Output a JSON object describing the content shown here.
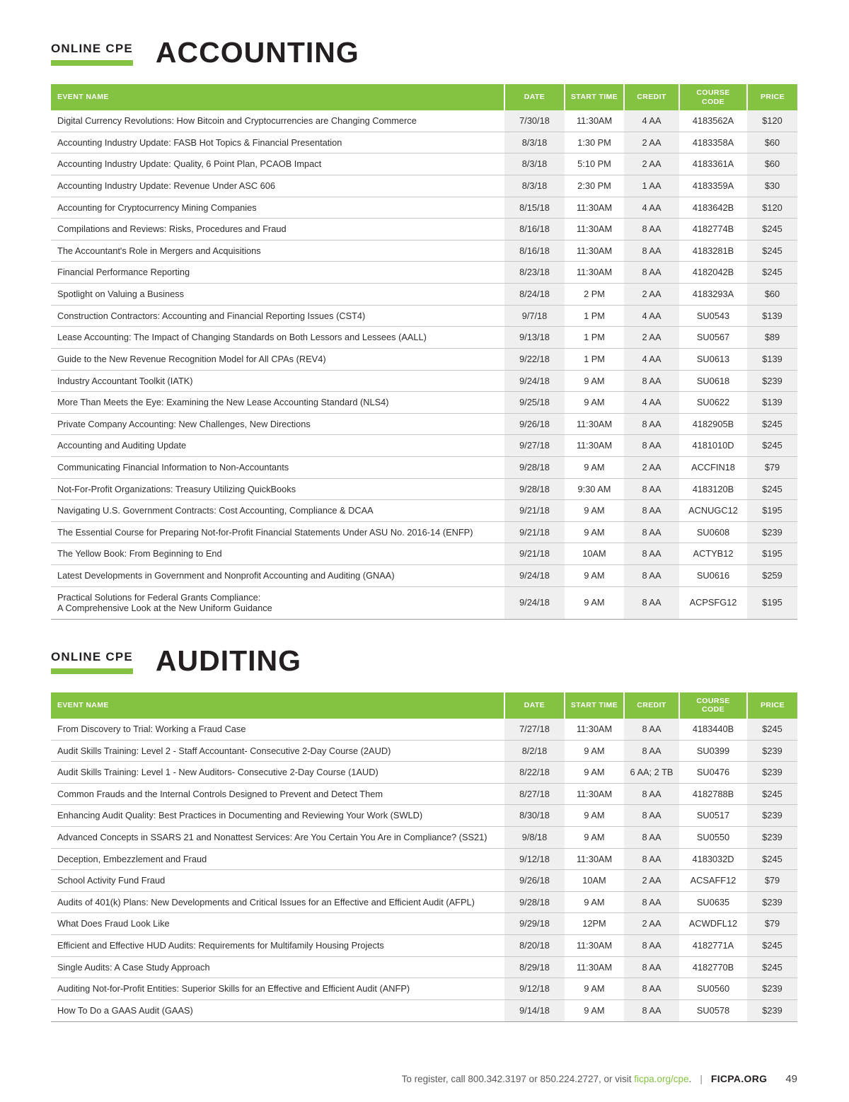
{
  "colors": {
    "green": "#84c341"
  },
  "sections": [
    {
      "label": "ONLINE CPE",
      "title": "ACCOUNTING",
      "columns": [
        "EVENT NAME",
        "DATE",
        "START TIME",
        "CREDIT",
        "COURSE CODE",
        "PRICE"
      ],
      "rows": [
        [
          "Digital Currency Revolutions: How Bitcoin and Cryptocurrencies are Changing Commerce",
          "7/30/18",
          "11:30AM",
          "4 AA",
          "4183562A",
          "$120"
        ],
        [
          "Accounting Industry Update: FASB Hot Topics & Financial Presentation",
          "8/3/18",
          "1:30 PM",
          "2 AA",
          "4183358A",
          "$60"
        ],
        [
          "Accounting Industry Update: Quality, 6 Point Plan, PCAOB Impact",
          "8/3/18",
          "5:10 PM",
          "2 AA",
          "4183361A",
          "$60"
        ],
        [
          "Accounting Industry Update: Revenue Under ASC 606",
          "8/3/18",
          "2:30 PM",
          "1 AA",
          "4183359A",
          "$30"
        ],
        [
          "Accounting for Cryptocurrency Mining Companies",
          "8/15/18",
          "11:30AM",
          "4 AA",
          "4183642B",
          "$120"
        ],
        [
          "Compilations and Reviews: Risks, Procedures and Fraud",
          "8/16/18",
          "11:30AM",
          "8 AA",
          "4182774B",
          "$245"
        ],
        [
          "The Accountant's Role in Mergers and Acquisitions",
          "8/16/18",
          "11:30AM",
          "8 AA",
          "4183281B",
          "$245"
        ],
        [
          "Financial Performance Reporting",
          "8/23/18",
          "11:30AM",
          "8 AA",
          "4182042B",
          "$245"
        ],
        [
          "Spotlight on Valuing a Business",
          "8/24/18",
          "2 PM",
          "2 AA",
          "4183293A",
          "$60"
        ],
        [
          "Construction Contractors: Accounting and Financial Reporting Issues (CST4)",
          "9/7/18",
          "1 PM",
          "4 AA",
          "SU0543",
          "$139"
        ],
        [
          "Lease Accounting: The Impact of Changing Standards on Both Lessors and Lessees (AALL)",
          "9/13/18",
          "1 PM",
          "2 AA",
          "SU0567",
          "$89"
        ],
        [
          "Guide to the New Revenue Recognition Model for All CPAs (REV4)",
          "9/22/18",
          "1 PM",
          "4 AA",
          "SU0613",
          "$139"
        ],
        [
          "Industry Accountant Toolkit (IATK)",
          "9/24/18",
          "9 AM",
          "8 AA",
          "SU0618",
          "$239"
        ],
        [
          "More Than Meets the Eye: Examining the New Lease Accounting Standard (NLS4)",
          "9/25/18",
          "9 AM",
          "4 AA",
          "SU0622",
          "$139"
        ],
        [
          "Private Company Accounting: New Challenges, New Directions",
          "9/26/18",
          "11:30AM",
          "8 AA",
          "4182905B",
          "$245"
        ],
        [
          "Accounting and Auditing Update",
          "9/27/18",
          "11:30AM",
          "8 AA",
          "4181010D",
          "$245"
        ],
        [
          "Communicating Financial Information to Non-Accountants",
          "9/28/18",
          "9 AM",
          "2 AA",
          "ACCFIN18",
          "$79"
        ],
        [
          "Not-For-Profit Organizations: Treasury Utilizing QuickBooks",
          "9/28/18",
          "9:30 AM",
          "8 AA",
          "4183120B",
          "$245"
        ],
        [
          "Navigating U.S. Government Contracts: Cost Accounting, Compliance & DCAA",
          "9/21/18",
          "9 AM",
          "8 AA",
          "ACNUGC12",
          "$195"
        ],
        [
          "The Essential Course for Preparing Not-for-Profit Financial Statements Under ASU No. 2016-14  (ENFP)",
          "9/21/18",
          "9 AM",
          "8 AA",
          "SU0608",
          "$239"
        ],
        [
          "The Yellow Book: From Beginning to End",
          "9/21/18",
          "10AM",
          "8 AA",
          "ACTYB12",
          "$195"
        ],
        [
          "Latest Developments in Government and Nonprofit Accounting and Auditing (GNAA)",
          "9/24/18",
          "9 AM",
          "8 AA",
          "SU0616",
          "$259"
        ],
        [
          "Practical Solutions for Federal Grants Compliance:\nA Comprehensive Look at the New Uniform Guidance",
          "9/24/18",
          "9 AM",
          "8 AA",
          "ACPSFG12",
          "$195"
        ]
      ]
    },
    {
      "label": "ONLINE CPE",
      "title": "AUDITING",
      "columns": [
        "EVENT NAME",
        "DATE",
        "START TIME",
        "CREDIT",
        "COURSE CODE",
        "PRICE"
      ],
      "rows": [
        [
          "From Discovery to Trial: Working a Fraud Case",
          "7/27/18",
          "11:30AM",
          "8 AA",
          "4183440B",
          "$245"
        ],
        [
          "Audit Skills Training: Level 2 - Staff Accountant- Consecutive 2-Day Course (2AUD)",
          "8/2/18",
          "9 AM",
          "8 AA",
          "SU0399",
          "$239"
        ],
        [
          "Audit Skills Training: Level 1 - New Auditors- Consecutive 2-Day Course (1AUD)",
          "8/22/18",
          "9 AM",
          "6 AA; 2 TB",
          "SU0476",
          "$239"
        ],
        [
          "Common Frauds and the Internal Controls Designed to Prevent and Detect Them",
          "8/27/18",
          "11:30AM",
          "8 AA",
          "4182788B",
          "$245"
        ],
        [
          "Enhancing Audit Quality: Best Practices in Documenting and Reviewing Your Work (SWLD)",
          "8/30/18",
          "9 AM",
          "8 AA",
          "SU0517",
          "$239"
        ],
        [
          "Advanced Concepts in SSARS 21 and Nonattest Services: Are You Certain You Are in Compliance? (SS21)",
          "9/8/18",
          "9 AM",
          "8 AA",
          "SU0550",
          "$239"
        ],
        [
          "Deception, Embezzlement and Fraud",
          "9/12/18",
          "11:30AM",
          "8 AA",
          "4183032D",
          "$245"
        ],
        [
          "School Activity Fund Fraud",
          "9/26/18",
          "10AM",
          "2 AA",
          "ACSAFF12",
          "$79"
        ],
        [
          "Audits of 401(k) Plans: New Developments and Critical Issues for an Effective and Efficient Audit (AFPL)",
          "9/28/18",
          "9 AM",
          "8 AA",
          "SU0635",
          "$239"
        ],
        [
          "What Does Fraud Look Like",
          "9/29/18",
          "12PM",
          "2 AA",
          "ACWDFL12",
          "$79"
        ],
        [
          "Efficient and Effective HUD Audits: Requirements for Multifamily Housing Projects",
          "8/20/18",
          "11:30AM",
          "8 AA",
          "4182771A",
          "$245"
        ],
        [
          "Single Audits: A Case Study Approach",
          "8/29/18",
          "11:30AM",
          "8 AA",
          "4182770B",
          "$245"
        ],
        [
          "Auditing Not-for-Profit Entities: Superior Skills for an Effective and Efficient Audit (ANFP)",
          "9/12/18",
          "9 AM",
          "8 AA",
          "SU0560",
          "$239"
        ],
        [
          "How To Do a GAAS Audit (GAAS)",
          "9/14/18",
          "9 AM",
          "8 AA",
          "SU0578",
          "$239"
        ]
      ]
    }
  ],
  "footer": {
    "register_prefix": "To register, call 800.342.3197 or 850.224.2727, or visit ",
    "link": "ficpa.org/cpe",
    "suffix": ".",
    "divider": "|",
    "brand": "FICPA.ORG",
    "page_number": "49"
  }
}
